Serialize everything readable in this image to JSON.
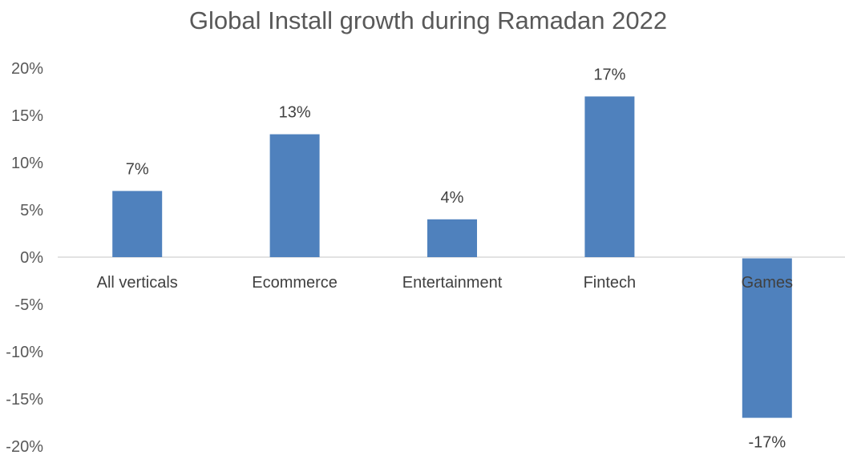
{
  "chart_data": {
    "type": "bar",
    "title": "Global Install growth during Ramadan 2022",
    "xlabel": "",
    "ylabel": "",
    "categories": [
      "All verticals",
      "Ecommerce",
      "Entertainment",
      "Fintech",
      "Games"
    ],
    "values": [
      7,
      13,
      4,
      17,
      -17
    ],
    "data_labels": [
      "7%",
      "13%",
      "4%",
      "17%",
      "-17%"
    ],
    "ylim": [
      -20,
      20
    ],
    "y_ticks": [
      20,
      15,
      10,
      5,
      0,
      -5,
      -10,
      -15,
      -20
    ],
    "y_tick_labels": [
      "20%",
      "15%",
      "10%",
      "5%",
      "0%",
      "-5%",
      "-10%",
      "-15%",
      "-20%"
    ],
    "grid": false,
    "legend": "none",
    "colors": {
      "bar": "#4f81bd",
      "axis": "#d9d9d9",
      "text": "#595959"
    }
  }
}
